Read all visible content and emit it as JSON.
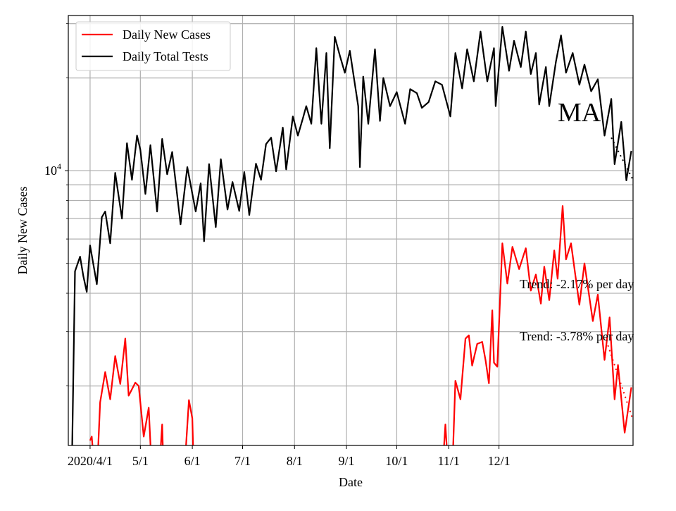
{
  "chart_data": {
    "type": "line",
    "xlabel": "Date",
    "ylabel": "Daily New Cases",
    "yscale": "log",
    "ylim": [
      1282,
      31900
    ],
    "xlim": [
      "2020-03-19",
      "2021-02-19"
    ],
    "grid": true,
    "legend_position": "top-left",
    "x_ticks": [
      {
        "date": "2020-04-01",
        "label": "2020/4/1"
      },
      {
        "date": "2020-05-01",
        "label": "5/1"
      },
      {
        "date": "2020-06-01",
        "label": "6/1"
      },
      {
        "date": "2020-07-01",
        "label": "7/1"
      },
      {
        "date": "2020-08-01",
        "label": "8/1"
      },
      {
        "date": "2020-09-01",
        "label": "9/1"
      },
      {
        "date": "2020-10-01",
        "label": "10/1"
      },
      {
        "date": "2020-11-01",
        "label": "11/1"
      },
      {
        "date": "2020-12-01",
        "label": "12/1"
      }
    ],
    "y_major_ticks": [
      {
        "value": 10000,
        "base": "10",
        "exp": "4"
      }
    ],
    "y_minor_ticks": [
      2000,
      3000,
      4000,
      5000,
      6000,
      7000,
      8000,
      9000,
      20000,
      30000
    ],
    "series": [
      {
        "name": "Daily New Cases",
        "color": "#ff0000",
        "points": [
          [
            "2020-04-01",
            1330
          ],
          [
            "2020-04-02",
            1370
          ],
          [
            "2020-04-04",
            1000
          ],
          [
            "2020-04-05",
            1000
          ],
          [
            "2020-04-07",
            1770
          ],
          [
            "2020-04-10",
            2220
          ],
          [
            "2020-04-13",
            1810
          ],
          [
            "2020-04-16",
            2500
          ],
          [
            "2020-04-19",
            2030
          ],
          [
            "2020-04-22",
            2850
          ],
          [
            "2020-04-24",
            1860
          ],
          [
            "2020-04-28",
            2050
          ],
          [
            "2020-04-30",
            2000
          ],
          [
            "2020-05-03",
            1370
          ],
          [
            "2020-05-06",
            1700
          ],
          [
            "2020-05-08",
            1000
          ],
          [
            "2020-05-12",
            1000
          ],
          [
            "2020-05-14",
            1500
          ],
          [
            "2020-05-15",
            1000
          ],
          [
            "2020-05-27",
            1000
          ],
          [
            "2020-05-30",
            1800
          ],
          [
            "2020-06-01",
            1570
          ],
          [
            "2020-06-02",
            1000
          ],
          [
            "2020-10-28",
            1000
          ],
          [
            "2020-10-30",
            1500
          ],
          [
            "2020-11-01",
            1000
          ],
          [
            "2020-11-03",
            1000
          ],
          [
            "2020-11-05",
            2080
          ],
          [
            "2020-11-08",
            1810
          ],
          [
            "2020-11-11",
            2850
          ],
          [
            "2020-11-13",
            2920
          ],
          [
            "2020-11-15",
            2330
          ],
          [
            "2020-11-18",
            2740
          ],
          [
            "2020-11-21",
            2780
          ],
          [
            "2020-11-23",
            2420
          ],
          [
            "2020-11-25",
            2040
          ],
          [
            "2020-11-27",
            3520
          ],
          [
            "2020-11-28",
            2380
          ],
          [
            "2020-11-30",
            2310
          ],
          [
            "2020-12-03",
            5810
          ],
          [
            "2020-12-06",
            4300
          ],
          [
            "2020-12-09",
            5660
          ],
          [
            "2020-12-13",
            4790
          ],
          [
            "2020-12-17",
            5600
          ],
          [
            "2020-12-20",
            4080
          ],
          [
            "2020-12-23",
            4600
          ],
          [
            "2020-12-26",
            3700
          ],
          [
            "2020-12-28",
            4880
          ],
          [
            "2020-12-31",
            3800
          ],
          [
            "2021-01-03",
            5510
          ],
          [
            "2021-01-05",
            4460
          ],
          [
            "2021-01-08",
            7680
          ],
          [
            "2021-01-10",
            5150
          ],
          [
            "2021-01-13",
            5810
          ],
          [
            "2021-01-18",
            3670
          ],
          [
            "2021-01-21",
            5000
          ],
          [
            "2021-01-26",
            3250
          ],
          [
            "2021-01-29",
            3960
          ],
          [
            "2021-02-02",
            2430
          ],
          [
            "2021-02-05",
            3340
          ],
          [
            "2021-02-08",
            1810
          ],
          [
            "2021-02-10",
            2340
          ],
          [
            "2021-02-14",
            1410
          ],
          [
            "2021-02-18",
            1980
          ]
        ],
        "trend": {
          "label": "Trend: -3.78% per day",
          "points": [
            [
              "2021-02-04",
              2710
            ],
            [
              "2021-02-19",
              1550
            ]
          ]
        }
      },
      {
        "name": "Daily Total Tests",
        "color": "#000000",
        "points": [
          [
            "2020-03-21",
            1000
          ],
          [
            "2020-03-23",
            4710
          ],
          [
            "2020-03-26",
            5260
          ],
          [
            "2020-03-28",
            4540
          ],
          [
            "2020-03-30",
            4040
          ],
          [
            "2020-04-01",
            5720
          ],
          [
            "2020-04-05",
            4280
          ],
          [
            "2020-04-08",
            7060
          ],
          [
            "2020-04-10",
            7370
          ],
          [
            "2020-04-13",
            5810
          ],
          [
            "2020-04-16",
            9840
          ],
          [
            "2020-04-20",
            6990
          ],
          [
            "2020-04-23",
            12280
          ],
          [
            "2020-04-26",
            9340
          ],
          [
            "2020-04-29",
            13000
          ],
          [
            "2020-05-01",
            11700
          ],
          [
            "2020-05-04",
            8400
          ],
          [
            "2020-05-07",
            12100
          ],
          [
            "2020-05-11",
            7370
          ],
          [
            "2020-05-14",
            12680
          ],
          [
            "2020-05-17",
            9740
          ],
          [
            "2020-05-20",
            11500
          ],
          [
            "2020-05-25",
            6700
          ],
          [
            "2020-05-29",
            10270
          ],
          [
            "2020-06-03",
            7370
          ],
          [
            "2020-06-06",
            9100
          ],
          [
            "2020-06-08",
            5900
          ],
          [
            "2020-06-11",
            10500
          ],
          [
            "2020-06-15",
            6560
          ],
          [
            "2020-06-18",
            10900
          ],
          [
            "2020-06-22",
            7480
          ],
          [
            "2020-06-25",
            9190
          ],
          [
            "2020-06-29",
            7400
          ],
          [
            "2020-07-02",
            9900
          ],
          [
            "2020-07-05",
            7180
          ],
          [
            "2020-07-09",
            10540
          ],
          [
            "2020-07-12",
            9340
          ],
          [
            "2020-07-15",
            12200
          ],
          [
            "2020-07-18",
            12800
          ],
          [
            "2020-07-21",
            9950
          ],
          [
            "2020-07-25",
            13800
          ],
          [
            "2020-07-27",
            10100
          ],
          [
            "2020-07-31",
            15000
          ],
          [
            "2020-08-03",
            13000
          ],
          [
            "2020-08-06",
            14800
          ],
          [
            "2020-08-08",
            16200
          ],
          [
            "2020-08-11",
            14200
          ],
          [
            "2020-08-14",
            25000
          ],
          [
            "2020-08-17",
            14200
          ],
          [
            "2020-08-20",
            24100
          ],
          [
            "2020-08-22",
            11830
          ],
          [
            "2020-08-25",
            27200
          ],
          [
            "2020-08-28",
            23700
          ],
          [
            "2020-08-31",
            20800
          ],
          [
            "2020-09-03",
            24500
          ],
          [
            "2020-09-08",
            16200
          ],
          [
            "2020-09-09",
            10270
          ],
          [
            "2020-09-11",
            20200
          ],
          [
            "2020-09-14",
            14200
          ],
          [
            "2020-09-18",
            24800
          ],
          [
            "2020-09-21",
            14500
          ],
          [
            "2020-09-23",
            20000
          ],
          [
            "2020-09-27",
            16200
          ],
          [
            "2020-10-01",
            18000
          ],
          [
            "2020-10-06",
            14200
          ],
          [
            "2020-10-09",
            18400
          ],
          [
            "2020-10-13",
            17850
          ],
          [
            "2020-10-16",
            16000
          ],
          [
            "2020-10-20",
            16700
          ],
          [
            "2020-10-24",
            19500
          ],
          [
            "2020-10-28",
            19000
          ],
          [
            "2020-11-02",
            15000
          ],
          [
            "2020-11-05",
            24100
          ],
          [
            "2020-11-09",
            18500
          ],
          [
            "2020-11-12",
            24800
          ],
          [
            "2020-11-16",
            19500
          ],
          [
            "2020-11-20",
            28300
          ],
          [
            "2020-11-24",
            19500
          ],
          [
            "2020-11-28",
            25000
          ],
          [
            "2020-11-29",
            16200
          ],
          [
            "2020-12-03",
            29300
          ],
          [
            "2020-12-07",
            21100
          ],
          [
            "2020-12-10",
            26400
          ],
          [
            "2020-12-14",
            21700
          ],
          [
            "2020-12-17",
            28300
          ],
          [
            "2020-12-20",
            20600
          ],
          [
            "2020-12-23",
            24100
          ],
          [
            "2020-12-25",
            16400
          ],
          [
            "2020-12-29",
            21700
          ],
          [
            "2020-12-31",
            16200
          ],
          [
            "2021-01-04",
            22600
          ],
          [
            "2021-01-07",
            27500
          ],
          [
            "2021-01-10",
            20800
          ],
          [
            "2021-01-14",
            24100
          ],
          [
            "2021-01-18",
            19000
          ],
          [
            "2021-01-21",
            22100
          ],
          [
            "2021-01-25",
            18100
          ],
          [
            "2021-01-29",
            19800
          ],
          [
            "2021-02-02",
            13000
          ],
          [
            "2021-02-06",
            17100
          ],
          [
            "2021-02-08",
            10500
          ],
          [
            "2021-02-12",
            14400
          ],
          [
            "2021-02-15",
            9300
          ],
          [
            "2021-02-18",
            11600
          ]
        ],
        "trend": {
          "label": "Trend: -2.17% per day",
          "points": [
            [
              "2021-02-06",
              12800
            ],
            [
              "2021-02-19",
              9330
            ]
          ]
        }
      }
    ],
    "annotations": [
      {
        "text": "MA"
      }
    ]
  }
}
